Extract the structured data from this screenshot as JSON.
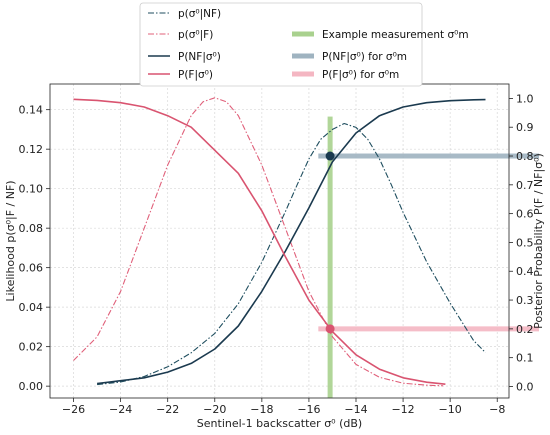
{
  "chart_data": {
    "type": "line",
    "xlabel": "Sentinel-1 backscatter σ⁰ (dB)",
    "ylabel_left": "Likelihood p(σ⁰|F / NF)",
    "ylabel_right": "Posterior Probability P(F / NF|σ⁰)",
    "xlim": [
      -27,
      -7.5
    ],
    "ylim_left": [
      -0.006,
      0.153
    ],
    "ylim_right": [
      -0.04,
      1.05
    ],
    "x_ticks": [
      -26,
      -24,
      -22,
      -20,
      -18,
      -16,
      -14,
      -12,
      -10,
      -8
    ],
    "x_tick_labels": [
      "−26",
      "−24",
      "−22",
      "−20",
      "−18",
      "−16",
      "−14",
      "−12",
      "−10",
      "−8"
    ],
    "y_left_ticks": [
      0.0,
      0.02,
      0.04,
      0.06,
      0.08,
      0.1,
      0.12,
      0.14
    ],
    "y_left_tick_labels": [
      "0.00",
      "0.02",
      "0.04",
      "0.06",
      "0.08",
      "0.10",
      "0.12",
      "0.14"
    ],
    "y_right_ticks": [
      0.0,
      0.1,
      0.2,
      0.3,
      0.4,
      0.5,
      0.6,
      0.7,
      0.8,
      0.9,
      1.0
    ],
    "y_right_tick_labels": [
      "0.0",
      "0.1",
      "0.2",
      "0.3",
      "0.4",
      "0.5",
      "0.6",
      "0.7",
      "0.8",
      "0.9",
      "1.0"
    ],
    "grid": true,
    "legend": {
      "location": "top-center",
      "entries": [
        {
          "label": "p(σ⁰|NF)",
          "style": "dashdot",
          "color": "#1f4e5f"
        },
        {
          "label": "p(σ⁰|F)",
          "style": "dashdot",
          "color": "#e0607a"
        },
        {
          "label": "P(NF|σ⁰)",
          "style": "solid",
          "color": "#1b3a4f"
        },
        {
          "label": "P(F|σ⁰)",
          "style": "solid",
          "color": "#d95470"
        },
        {
          "label": "Example measurement σ⁰m",
          "style": "band",
          "color": "#a9d18e"
        },
        {
          "label": "P(NF|σ⁰) for σ⁰m",
          "style": "band",
          "color": "#9fb3c0"
        },
        {
          "label": "P(F|σ⁰) for σ⁰m",
          "style": "band",
          "color": "#f4b6c2"
        }
      ]
    },
    "series": [
      {
        "name": "p(σ⁰|NF)",
        "axis": "left",
        "style": "dashdot",
        "color": "#1f4e5f",
        "x": [
          -25.0,
          -24.0,
          -23.0,
          -22.0,
          -21.0,
          -20.0,
          -19.0,
          -18.0,
          -17.0,
          -16.5,
          -16.0,
          -15.5,
          -15.0,
          -14.5,
          -14.0,
          -13.5,
          -13.0,
          -12.5,
          -12.0,
          -11.0,
          -10.0,
          -9.0,
          -8.5
        ],
        "y": [
          0.0008,
          0.0021,
          0.0049,
          0.0098,
          0.0169,
          0.0267,
          0.0417,
          0.0627,
          0.0884,
          0.102,
          0.115,
          0.125,
          0.13,
          0.133,
          0.131,
          0.125,
          0.115,
          0.102,
          0.088,
          0.063,
          0.042,
          0.023,
          0.017
        ]
      },
      {
        "name": "p(σ⁰|F)",
        "axis": "left",
        "style": "dashdot",
        "color": "#e0607a",
        "x": [
          -26.0,
          -25.0,
          -24.0,
          -23.0,
          -22.0,
          -21.0,
          -20.5,
          -20.0,
          -19.5,
          -19.0,
          -18.0,
          -17.0,
          -16.0,
          -15.0,
          -14.0,
          -13.0,
          -12.0,
          -11.0,
          -10.3
        ],
        "y": [
          0.013,
          0.025,
          0.048,
          0.08,
          0.112,
          0.137,
          0.144,
          0.146,
          0.144,
          0.137,
          0.112,
          0.08,
          0.048,
          0.025,
          0.011,
          0.0045,
          0.0015,
          0.0005,
          0.0002
        ]
      },
      {
        "name": "P(NF|σ⁰)",
        "axis": "right",
        "style": "solid",
        "color": "#1b3a4f",
        "x": [
          -25.0,
          -24.0,
          -23.0,
          -22.0,
          -21.0,
          -20.0,
          -19.0,
          -18.0,
          -17.0,
          -16.0,
          -15.0,
          -14.0,
          -13.0,
          -12.0,
          -11.0,
          -10.0,
          -9.0,
          -8.5
        ],
        "y": [
          0.01,
          0.02,
          0.03,
          0.05,
          0.08,
          0.13,
          0.21,
          0.33,
          0.47,
          0.62,
          0.78,
          0.88,
          0.94,
          0.97,
          0.985,
          0.992,
          0.995,
          0.996
        ]
      },
      {
        "name": "P(F|σ⁰)",
        "axis": "right",
        "style": "solid",
        "color": "#d95470",
        "x": [
          -26.0,
          -25.0,
          -24.0,
          -23.0,
          -22.0,
          -21.0,
          -20.0,
          -19.0,
          -18.0,
          -17.0,
          -16.0,
          -15.0,
          -14.0,
          -13.0,
          -12.0,
          -11.0,
          -10.2
        ],
        "y": [
          0.997,
          0.993,
          0.985,
          0.97,
          0.94,
          0.9,
          0.82,
          0.74,
          0.61,
          0.45,
          0.3,
          0.19,
          0.11,
          0.06,
          0.03,
          0.015,
          0.008
        ]
      }
    ],
    "measurement": {
      "label": "Example measurement σ⁰m",
      "x": -15.1,
      "y_range_left": [
        -0.006,
        0.1365
      ],
      "color": "#a9d18e"
    },
    "highlight_nf": {
      "label": "P(NF|σ⁰) for σ⁰m",
      "value": 0.8,
      "x_from": -15.6,
      "color": "#9fb3c0",
      "marker_color": "#1b3a4f"
    },
    "highlight_f": {
      "label": "P(F|σ⁰) for σ⁰m",
      "value": 0.2,
      "x_from": -15.6,
      "color": "#f4b6c2",
      "marker_color": "#d95470"
    }
  }
}
